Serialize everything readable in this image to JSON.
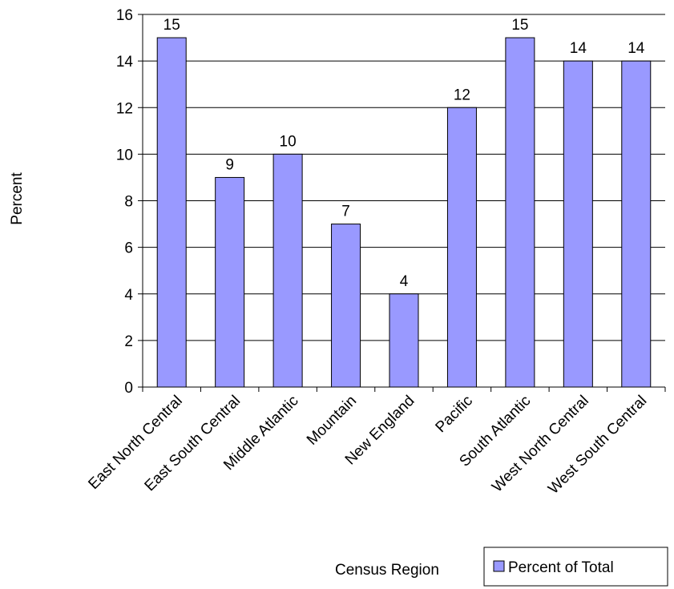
{
  "chart_data": {
    "type": "bar",
    "title": "",
    "xlabel": "Census Region",
    "ylabel": "Percent",
    "categories": [
      "East North Central",
      "East South Central",
      "Middle Atlantic",
      "Mountain",
      "New England",
      "Pacific",
      "South Atlantic",
      "West North Central",
      "West South Central"
    ],
    "series": [
      {
        "name": "Percent of Total",
        "values": [
          15,
          9,
          10,
          7,
          4,
          12,
          15,
          14,
          14
        ],
        "color": "#9999ff"
      }
    ],
    "ylim": [
      0,
      16
    ],
    "yticks": [
      0,
      2,
      4,
      6,
      8,
      10,
      12,
      14,
      16
    ],
    "grid": true,
    "data_labels": true,
    "legend_position": "bottom-right"
  }
}
